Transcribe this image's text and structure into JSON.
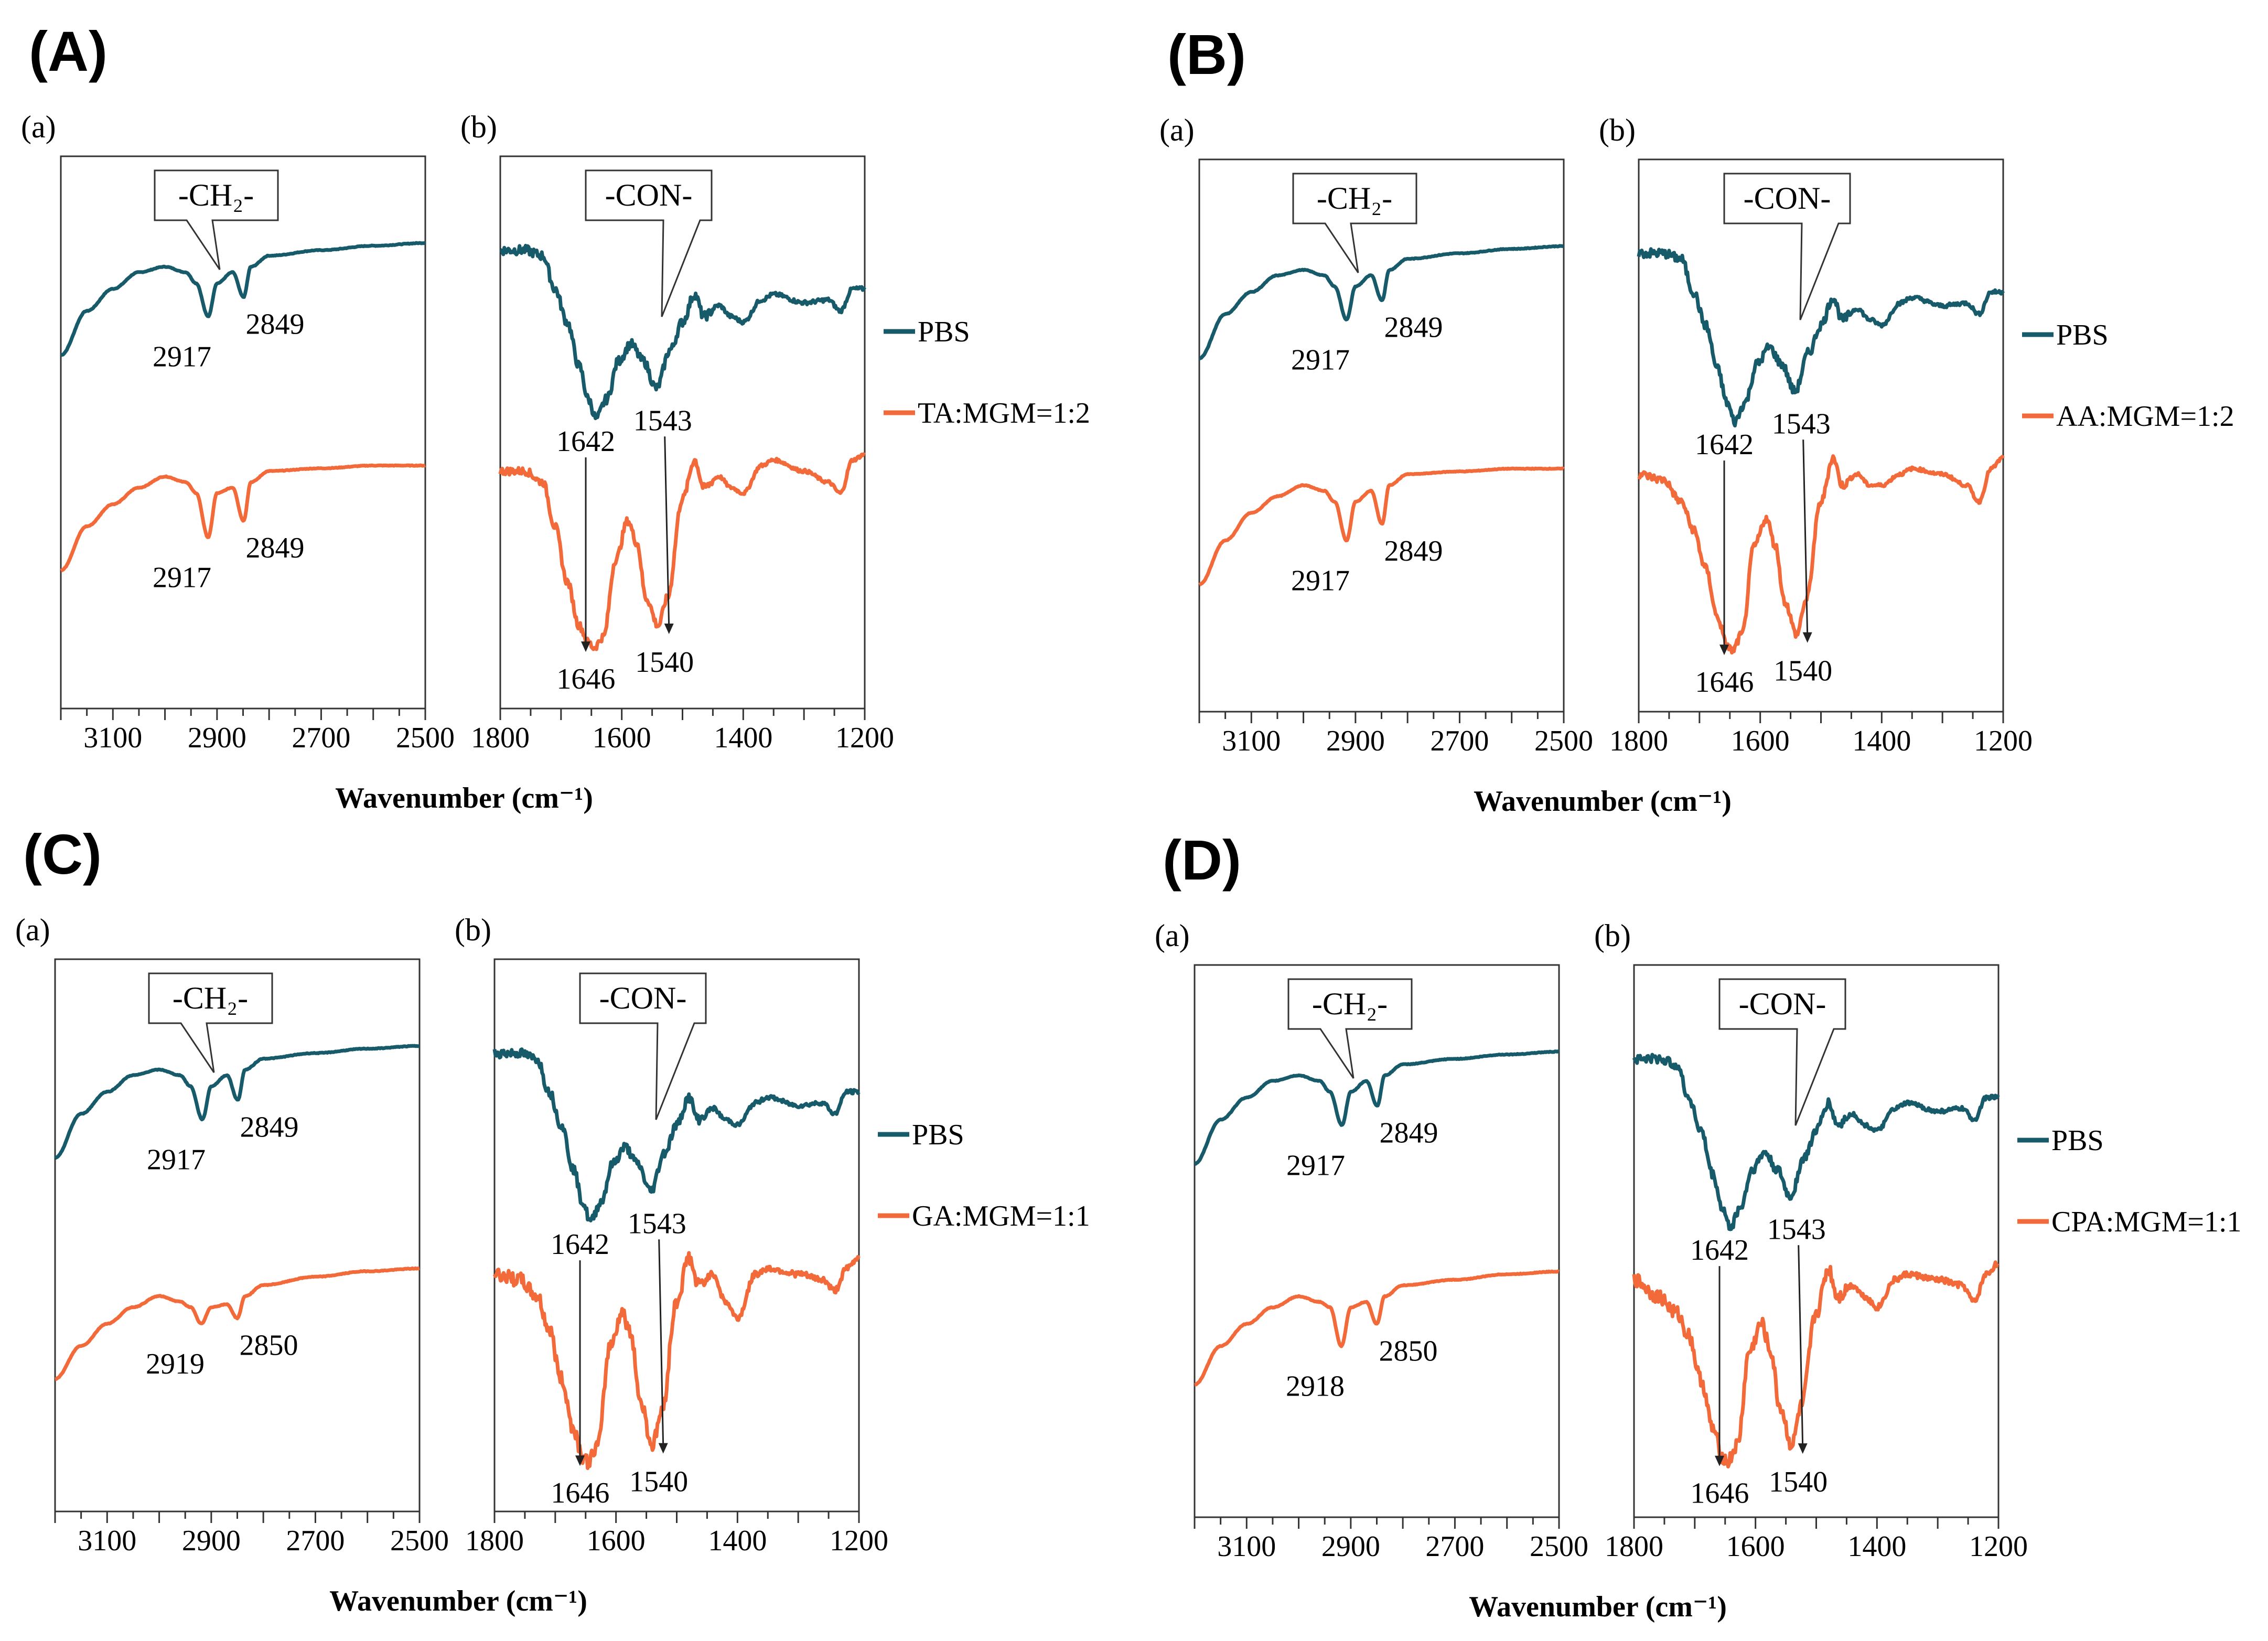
{
  "colors": {
    "pbs": "#175a69",
    "treated": "#f2693a",
    "axis": "#333333"
  },
  "pbs_curves": {
    "a": [
      [
        3200,
        0.64
      ],
      [
        3150,
        0.72
      ],
      [
        3100,
        0.76
      ],
      [
        3050,
        0.79
      ],
      [
        3000,
        0.8
      ],
      [
        2960,
        0.79
      ],
      [
        2940,
        0.77
      ],
      [
        2917,
        0.71
      ],
      [
        2900,
        0.77
      ],
      [
        2870,
        0.79
      ],
      [
        2849,
        0.745
      ],
      [
        2835,
        0.8
      ],
      [
        2800,
        0.82
      ],
      [
        2700,
        0.83
      ],
      [
        2600,
        0.838
      ],
      [
        2500,
        0.843
      ]
    ],
    "b": [
      [
        1800,
        0.83
      ],
      [
        1760,
        0.83
      ],
      [
        1730,
        0.82
      ],
      [
        1710,
        0.76
      ],
      [
        1690,
        0.7
      ],
      [
        1670,
        0.62
      ],
      [
        1655,
        0.56
      ],
      [
        1642,
        0.525
      ],
      [
        1625,
        0.56
      ],
      [
        1605,
        0.63
      ],
      [
        1585,
        0.66
      ],
      [
        1565,
        0.63
      ],
      [
        1543,
        0.58
      ],
      [
        1520,
        0.65
      ],
      [
        1500,
        0.7
      ],
      [
        1480,
        0.75
      ],
      [
        1465,
        0.71
      ],
      [
        1440,
        0.73
      ],
      [
        1420,
        0.71
      ],
      [
        1400,
        0.7
      ],
      [
        1370,
        0.74
      ],
      [
        1350,
        0.75
      ],
      [
        1300,
        0.735
      ],
      [
        1260,
        0.74
      ],
      [
        1240,
        0.72
      ],
      [
        1220,
        0.76
      ],
      [
        1200,
        0.76
      ]
    ]
  },
  "chart_data": [
    {
      "type": "line",
      "panel": "(A)",
      "sub_a": {
        "label": "(a)",
        "xlim": [
          3200,
          2500
        ],
        "ticks": [
          "3100",
          "2900",
          "2700",
          "2500"
        ],
        "callout": "-CH₂-",
        "pbs_peaks": [
          "2917",
          "2849"
        ],
        "treated_peaks": [
          "2917",
          "2849"
        ],
        "treated": [
          [
            3200,
            0.25
          ],
          [
            3150,
            0.33
          ],
          [
            3100,
            0.37
          ],
          [
            3050,
            0.4
          ],
          [
            3000,
            0.42
          ],
          [
            2960,
            0.41
          ],
          [
            2940,
            0.39
          ],
          [
            2917,
            0.31
          ],
          [
            2900,
            0.39
          ],
          [
            2870,
            0.4
          ],
          [
            2849,
            0.34
          ],
          [
            2835,
            0.41
          ],
          [
            2800,
            0.43
          ],
          [
            2700,
            0.435
          ],
          [
            2600,
            0.44
          ],
          [
            2500,
            0.44
          ]
        ]
      },
      "sub_b": {
        "label": "(b)",
        "xlim": [
          1800,
          1200
        ],
        "ticks": [
          "1800",
          "1600",
          "1400",
          "1200"
        ],
        "callout": "-CON-",
        "pbs_peaks": [
          "1642",
          "1543"
        ],
        "treated_peaks": [
          "1646",
          "1540"
        ],
        "treated": [
          [
            1800,
            0.43
          ],
          [
            1760,
            0.43
          ],
          [
            1730,
            0.41
          ],
          [
            1710,
            0.33
          ],
          [
            1690,
            0.23
          ],
          [
            1670,
            0.15
          ],
          [
            1655,
            0.12
          ],
          [
            1646,
            0.11
          ],
          [
            1630,
            0.13
          ],
          [
            1610,
            0.27
          ],
          [
            1590,
            0.34
          ],
          [
            1575,
            0.3
          ],
          [
            1560,
            0.2
          ],
          [
            1540,
            0.15
          ],
          [
            1525,
            0.2
          ],
          [
            1500,
            0.38
          ],
          [
            1480,
            0.45
          ],
          [
            1465,
            0.4
          ],
          [
            1440,
            0.42
          ],
          [
            1420,
            0.4
          ],
          [
            1400,
            0.39
          ],
          [
            1370,
            0.44
          ],
          [
            1350,
            0.45
          ],
          [
            1300,
            0.43
          ],
          [
            1260,
            0.41
          ],
          [
            1240,
            0.39
          ],
          [
            1220,
            0.45
          ],
          [
            1200,
            0.46
          ]
        ]
      },
      "legend": [
        "PBS",
        "TA:MGM=1:2"
      ],
      "xlabel": "Wavenumber (cm⁻¹)"
    },
    {
      "type": "line",
      "panel": "(B)",
      "sub_a": {
        "label": "(a)",
        "xlim": [
          3200,
          2500
        ],
        "ticks": [
          "3100",
          "2900",
          "2700",
          "2500"
        ],
        "callout": "-CH₂-",
        "pbs_peaks": [
          "2917",
          "2849"
        ],
        "treated_peaks": [
          "2917",
          "2849"
        ],
        "treated": [
          [
            3200,
            0.23
          ],
          [
            3150,
            0.31
          ],
          [
            3100,
            0.36
          ],
          [
            3050,
            0.39
          ],
          [
            3000,
            0.41
          ],
          [
            2960,
            0.4
          ],
          [
            2940,
            0.38
          ],
          [
            2917,
            0.31
          ],
          [
            2900,
            0.38
          ],
          [
            2870,
            0.4
          ],
          [
            2849,
            0.34
          ],
          [
            2835,
            0.41
          ],
          [
            2800,
            0.43
          ],
          [
            2700,
            0.435
          ],
          [
            2600,
            0.44
          ],
          [
            2500,
            0.44
          ]
        ]
      },
      "sub_b": {
        "label": "(b)",
        "xlim": [
          1800,
          1200
        ],
        "ticks": [
          "1800",
          "1600",
          "1400",
          "1200"
        ],
        "callout": "-CON-",
        "pbs_peaks": [
          "1642",
          "1543"
        ],
        "treated_peaks": [
          "1646",
          "1540"
        ],
        "treated": [
          [
            1800,
            0.43
          ],
          [
            1760,
            0.42
          ],
          [
            1730,
            0.38
          ],
          [
            1710,
            0.33
          ],
          [
            1690,
            0.26
          ],
          [
            1670,
            0.17
          ],
          [
            1655,
            0.12
          ],
          [
            1646,
            0.11
          ],
          [
            1630,
            0.14
          ],
          [
            1610,
            0.3
          ],
          [
            1590,
            0.35
          ],
          [
            1575,
            0.3
          ],
          [
            1560,
            0.2
          ],
          [
            1540,
            0.14
          ],
          [
            1525,
            0.2
          ],
          [
            1500,
            0.38
          ],
          [
            1480,
            0.46
          ],
          [
            1465,
            0.41
          ],
          [
            1440,
            0.43
          ],
          [
            1420,
            0.41
          ],
          [
            1400,
            0.41
          ],
          [
            1370,
            0.43
          ],
          [
            1350,
            0.44
          ],
          [
            1300,
            0.43
          ],
          [
            1260,
            0.41
          ],
          [
            1240,
            0.38
          ],
          [
            1220,
            0.44
          ],
          [
            1200,
            0.46
          ]
        ]
      },
      "legend": [
        "PBS",
        "AA:MGM=1:2"
      ],
      "xlabel": "Wavenumber (cm⁻¹)"
    },
    {
      "type": "line",
      "panel": "(C)",
      "sub_a": {
        "label": "(a)",
        "xlim": [
          3200,
          2500
        ],
        "ticks": [
          "3100",
          "2900",
          "2700",
          "2500"
        ],
        "callout": "-CH₂-",
        "pbs_peaks": [
          "2917",
          "2849"
        ],
        "treated_peaks": [
          "2919",
          "2850"
        ],
        "treated": [
          [
            3200,
            0.24
          ],
          [
            3150,
            0.3
          ],
          [
            3100,
            0.34
          ],
          [
            3050,
            0.37
          ],
          [
            3000,
            0.39
          ],
          [
            2960,
            0.38
          ],
          [
            2940,
            0.37
          ],
          [
            2919,
            0.34
          ],
          [
            2900,
            0.37
          ],
          [
            2870,
            0.375
          ],
          [
            2850,
            0.35
          ],
          [
            2835,
            0.39
          ],
          [
            2800,
            0.41
          ],
          [
            2700,
            0.425
          ],
          [
            2600,
            0.435
          ],
          [
            2500,
            0.44
          ]
        ]
      },
      "sub_b": {
        "label": "(b)",
        "xlim": [
          1800,
          1200
        ],
        "ticks": [
          "1800",
          "1600",
          "1400",
          "1200"
        ],
        "callout": "-CON-",
        "pbs_peaks": [
          "1642",
          "1543"
        ],
        "treated_peaks": [
          "1646",
          "1540"
        ],
        "treated": [
          [
            1800,
            0.43
          ],
          [
            1760,
            0.42
          ],
          [
            1730,
            0.39
          ],
          [
            1710,
            0.33
          ],
          [
            1690,
            0.24
          ],
          [
            1670,
            0.15
          ],
          [
            1655,
            0.1
          ],
          [
            1646,
            0.09
          ],
          [
            1630,
            0.12
          ],
          [
            1610,
            0.3
          ],
          [
            1590,
            0.36
          ],
          [
            1575,
            0.32
          ],
          [
            1560,
            0.2
          ],
          [
            1540,
            0.12
          ],
          [
            1525,
            0.18
          ],
          [
            1500,
            0.38
          ],
          [
            1480,
            0.46
          ],
          [
            1465,
            0.41
          ],
          [
            1440,
            0.43
          ],
          [
            1420,
            0.38
          ],
          [
            1400,
            0.35
          ],
          [
            1370,
            0.43
          ],
          [
            1350,
            0.44
          ],
          [
            1300,
            0.43
          ],
          [
            1260,
            0.42
          ],
          [
            1240,
            0.4
          ],
          [
            1220,
            0.44
          ],
          [
            1200,
            0.46
          ]
        ]
      },
      "legend": [
        "PBS",
        "GA:MGM=1:1"
      ],
      "xlabel": "Wavenumber (cm⁻¹)"
    },
    {
      "type": "line",
      "panel": "(D)",
      "sub_a": {
        "label": "(a)",
        "xlim": [
          3200,
          2500
        ],
        "ticks": [
          "3100",
          "2900",
          "2700",
          "2500"
        ],
        "callout": "-CH₂-",
        "pbs_peaks": [
          "2917",
          "2849"
        ],
        "treated_peaks": [
          "2918",
          "2850"
        ],
        "treated": [
          [
            3200,
            0.24
          ],
          [
            3150,
            0.31
          ],
          [
            3100,
            0.35
          ],
          [
            3050,
            0.38
          ],
          [
            3000,
            0.4
          ],
          [
            2960,
            0.39
          ],
          [
            2940,
            0.38
          ],
          [
            2918,
            0.31
          ],
          [
            2900,
            0.38
          ],
          [
            2870,
            0.39
          ],
          [
            2850,
            0.35
          ],
          [
            2835,
            0.4
          ],
          [
            2800,
            0.42
          ],
          [
            2700,
            0.43
          ],
          [
            2600,
            0.44
          ],
          [
            2500,
            0.445
          ]
        ]
      },
      "sub_b": {
        "label": "(b)",
        "xlim": [
          1800,
          1200
        ],
        "ticks": [
          "1800",
          "1600",
          "1400",
          "1200"
        ],
        "callout": "-CON-",
        "pbs_peaks": [
          "1642",
          "1543"
        ],
        "treated_peaks": [
          "1646",
          "1540"
        ],
        "treated": [
          [
            1800,
            0.43
          ],
          [
            1760,
            0.4
          ],
          [
            1730,
            0.37
          ],
          [
            1710,
            0.33
          ],
          [
            1690,
            0.25
          ],
          [
            1670,
            0.16
          ],
          [
            1655,
            0.11
          ],
          [
            1646,
            0.1
          ],
          [
            1630,
            0.13
          ],
          [
            1610,
            0.3
          ],
          [
            1590,
            0.35
          ],
          [
            1575,
            0.3
          ],
          [
            1560,
            0.2
          ],
          [
            1540,
            0.13
          ],
          [
            1525,
            0.2
          ],
          [
            1500,
            0.37
          ],
          [
            1480,
            0.45
          ],
          [
            1465,
            0.4
          ],
          [
            1440,
            0.42
          ],
          [
            1420,
            0.4
          ],
          [
            1400,
            0.38
          ],
          [
            1370,
            0.43
          ],
          [
            1350,
            0.44
          ],
          [
            1300,
            0.43
          ],
          [
            1260,
            0.42
          ],
          [
            1240,
            0.39
          ],
          [
            1220,
            0.44
          ],
          [
            1200,
            0.46
          ]
        ]
      },
      "legend": [
        "PBS",
        "CPA:MGM=1:1"
      ],
      "xlabel": "Wavenumber (cm⁻¹)"
    }
  ]
}
